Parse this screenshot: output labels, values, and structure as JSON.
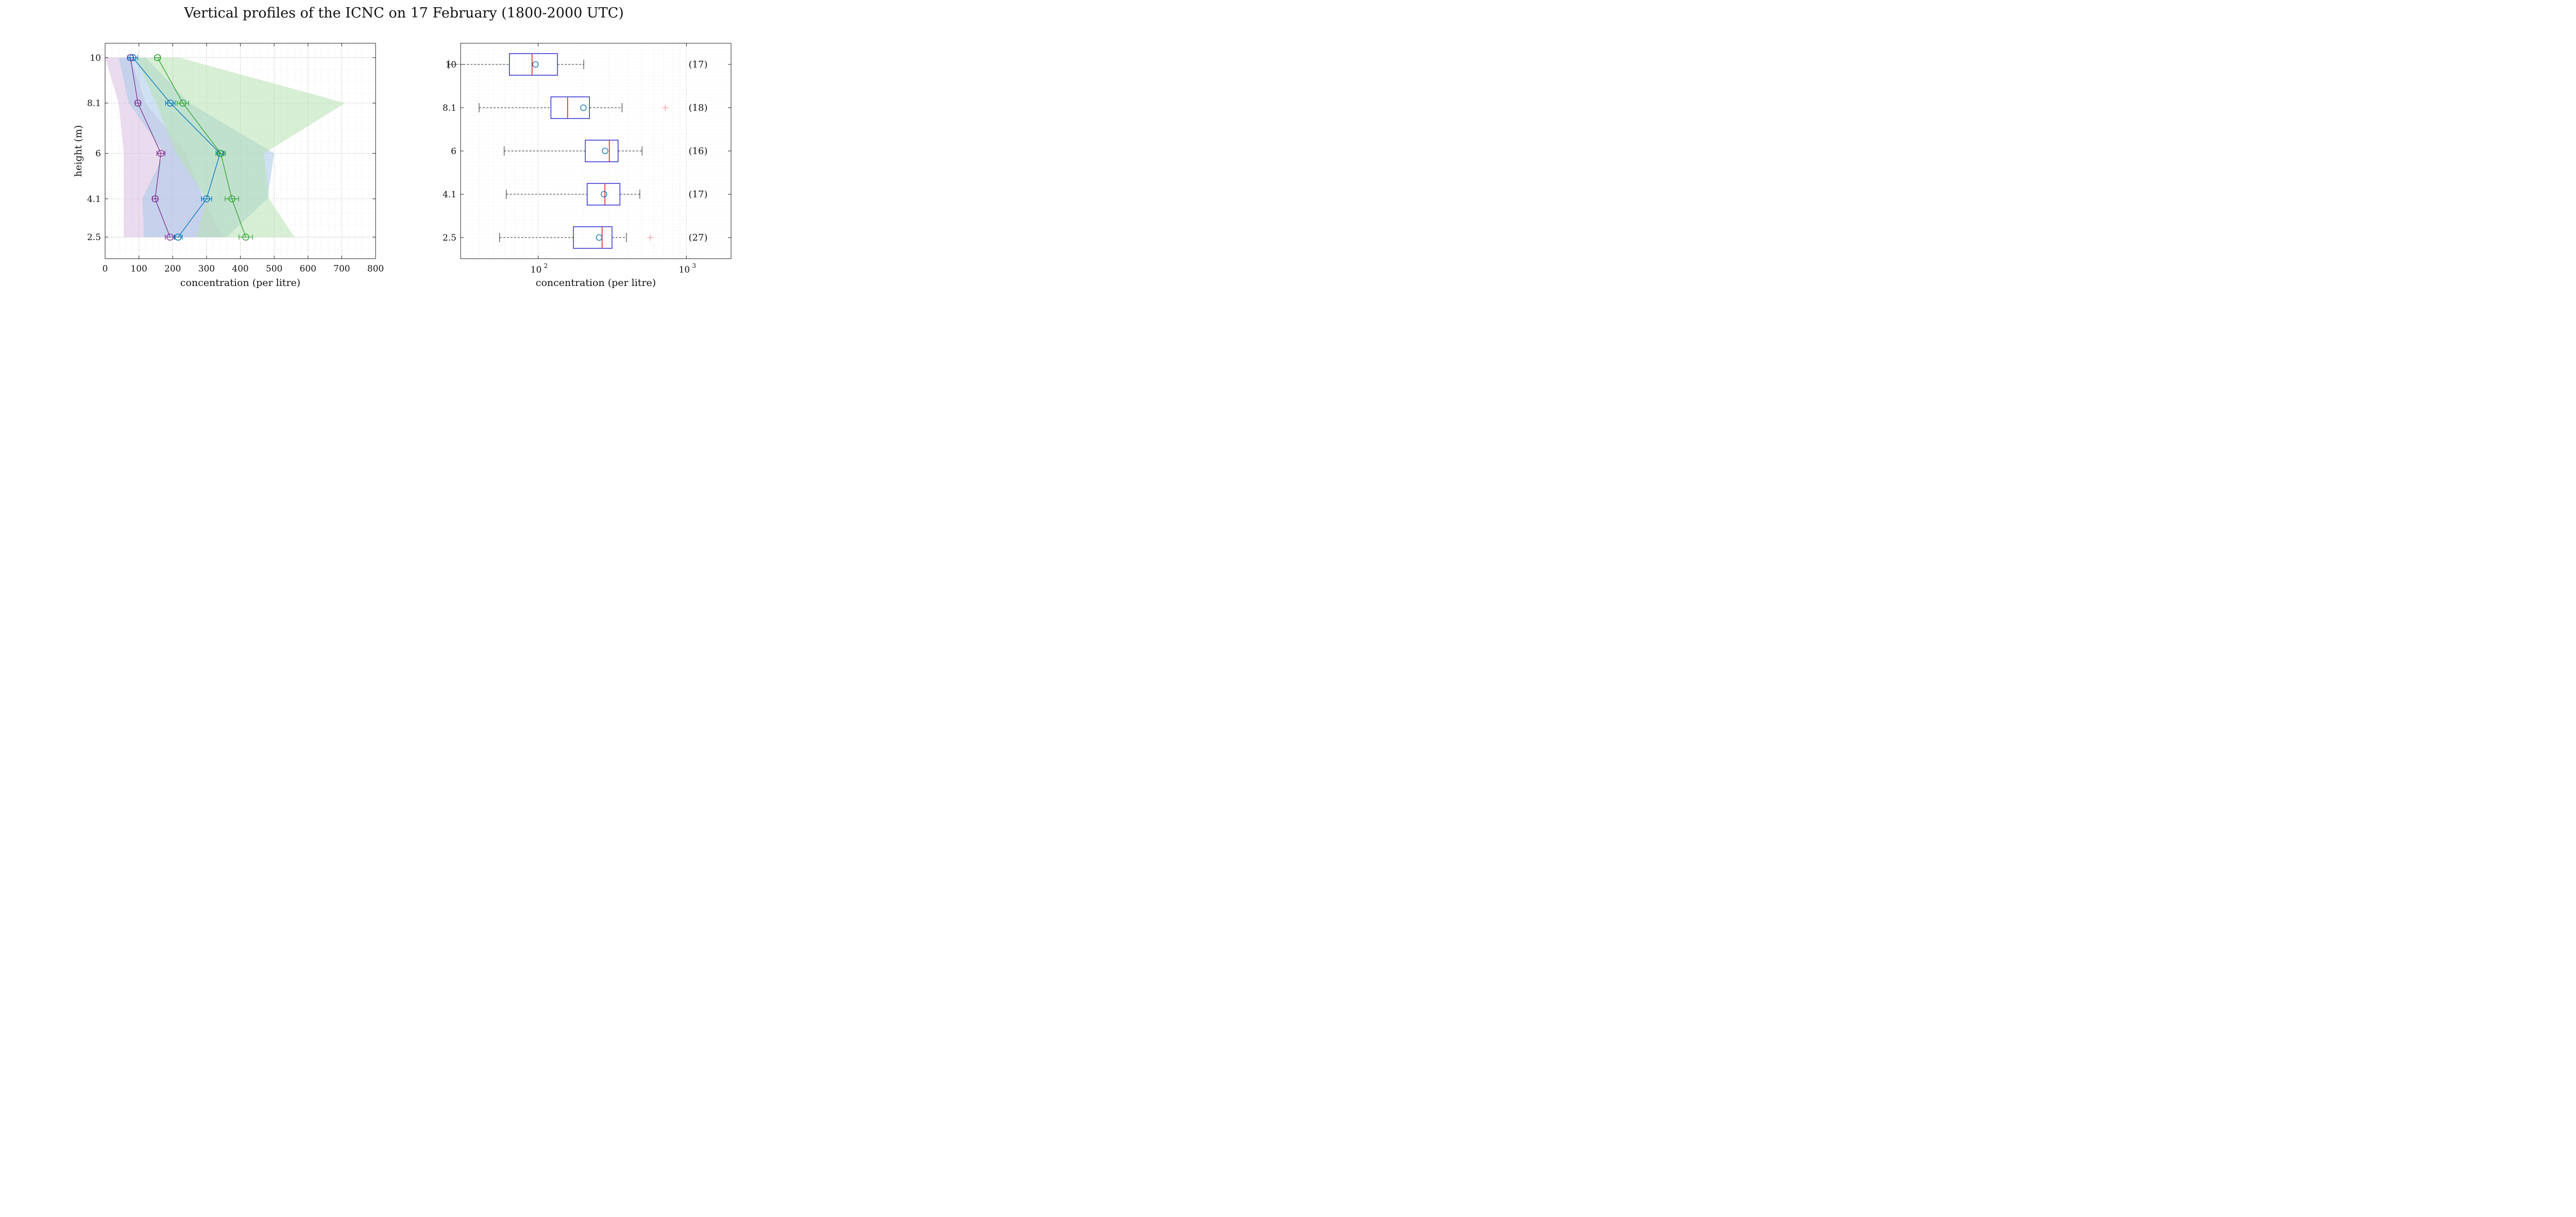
{
  "title": "Vertical profiles of the ICNC on 17 February (1800-2000 UTC)",
  "chart_data": [
    {
      "type": "line",
      "xlabel": "concentration (per litre)",
      "ylabel": "height (m)",
      "xlim": [
        0,
        800
      ],
      "ylim": [
        1.6,
        10.6
      ],
      "xticks": [
        0,
        100,
        200,
        300,
        400,
        500,
        600,
        700,
        800
      ],
      "yticks": [
        2.5,
        4.1,
        6,
        8.1,
        10
      ],
      "ytick_labels": [
        "2.5",
        "4.1",
        "6",
        "8.1",
        "10"
      ],
      "grid": true,
      "heights": [
        10,
        8.1,
        6,
        4.1,
        2.5
      ],
      "series": [
        {
          "color": "#7e2f8e",
          "fill": "#d9bfe0",
          "x": [
            75,
            97,
            165,
            148,
            192
          ],
          "xerr": [
            8,
            8,
            12,
            8,
            14
          ],
          "band_lo": [
            0,
            40,
            55,
            55,
            55
          ],
          "band_hi": [
            75,
            120,
            240,
            290,
            350
          ]
        },
        {
          "color": "#0072bd",
          "fill": "#a8c8ea",
          "x": [
            82,
            193,
            340,
            300,
            216
          ],
          "xerr": [
            14,
            14,
            12,
            15,
            12
          ],
          "band_lo": [
            40,
            70,
            175,
            110,
            115
          ],
          "band_hi": [
            120,
            250,
            500,
            480,
            360
          ]
        },
        {
          "color": "#2ca02c",
          "fill": "#b7e2b0",
          "x": [
            155,
            230,
            342,
            375,
            416
          ],
          "xerr": [
            8,
            17,
            14,
            20,
            20
          ],
          "band_lo": [
            90,
            150,
            210,
            300,
            270
          ],
          "band_hi": [
            220,
            710,
            470,
            485,
            560
          ]
        }
      ]
    },
    {
      "type": "box",
      "xscale": "log",
      "xlabel": "concentration (per litre)",
      "xlim": [
        30,
        2000
      ],
      "xtick_labels": [
        {
          "value": 100,
          "base": "10",
          "exp": "2"
        },
        {
          "value": 1000,
          "base": "10",
          "exp": "3"
        }
      ],
      "grid": true,
      "boxes": [
        {
          "label": "10",
          "count": "(17)",
          "whisker_lo": 25,
          "q1": 64,
          "median": 91,
          "q3": 135,
          "whisker_hi": 203,
          "mean": 96,
          "outliers": []
        },
        {
          "label": "8.1",
          "count": "(18)",
          "whisker_lo": 40,
          "q1": 122,
          "median": 158,
          "q3": 222,
          "whisker_hi": 368,
          "mean": 202,
          "outliers": [
            720
          ]
        },
        {
          "label": "6",
          "count": "(16)",
          "whisker_lo": 59,
          "q1": 208,
          "median": 302,
          "q3": 346,
          "whisker_hi": 502,
          "mean": 283,
          "outliers": []
        },
        {
          "label": "4.1",
          "count": "(17)",
          "whisker_lo": 61,
          "q1": 214,
          "median": 282,
          "q3": 356,
          "whisker_hi": 485,
          "mean": 278,
          "outliers": []
        },
        {
          "label": "2.5",
          "count": "(27)",
          "whisker_lo": 55,
          "q1": 173,
          "median": 270,
          "q3": 315,
          "whisker_hi": 394,
          "mean": 258,
          "outliers": [
            570
          ]
        }
      ],
      "box_color": "#1010d0",
      "median_color": "#e02020",
      "mean_color": "#0072bd",
      "outlier_color": "#f4a0a0"
    }
  ]
}
